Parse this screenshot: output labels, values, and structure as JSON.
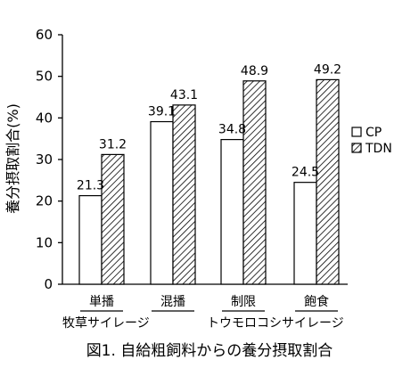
{
  "chart_data": {
    "type": "bar",
    "title": "",
    "caption": "図1. 自給粗飼料からの養分摂取割合",
    "ylabel": "養分摂取割合(%)",
    "xlabel": "",
    "ylim": [
      0,
      60
    ],
    "yticks": [
      "0",
      "10",
      "20",
      "30",
      "40",
      "50",
      "60"
    ],
    "categories": [
      "単播",
      "混播",
      "制限",
      "飽食"
    ],
    "groups": [
      {
        "label": "牧草サイレージ",
        "categories": [
          "単播",
          "混播"
        ]
      },
      {
        "label": "トウモロコシサイレージ",
        "categories": [
          "制限",
          "飽食"
        ]
      }
    ],
    "series": [
      {
        "name": "CP",
        "values": [
          21.3,
          39.1,
          34.8,
          24.5
        ],
        "labels": [
          "21.3",
          "39.1",
          "34.8",
          "24.5"
        ],
        "fill": "#ffffff"
      },
      {
        "name": "TDN",
        "values": [
          31.2,
          43.1,
          48.9,
          49.2
        ],
        "labels": [
          "31.2",
          "43.1",
          "48.9",
          "49.2"
        ],
        "fill": "hatched"
      }
    ],
    "legend_position": "right",
    "grid": false
  }
}
